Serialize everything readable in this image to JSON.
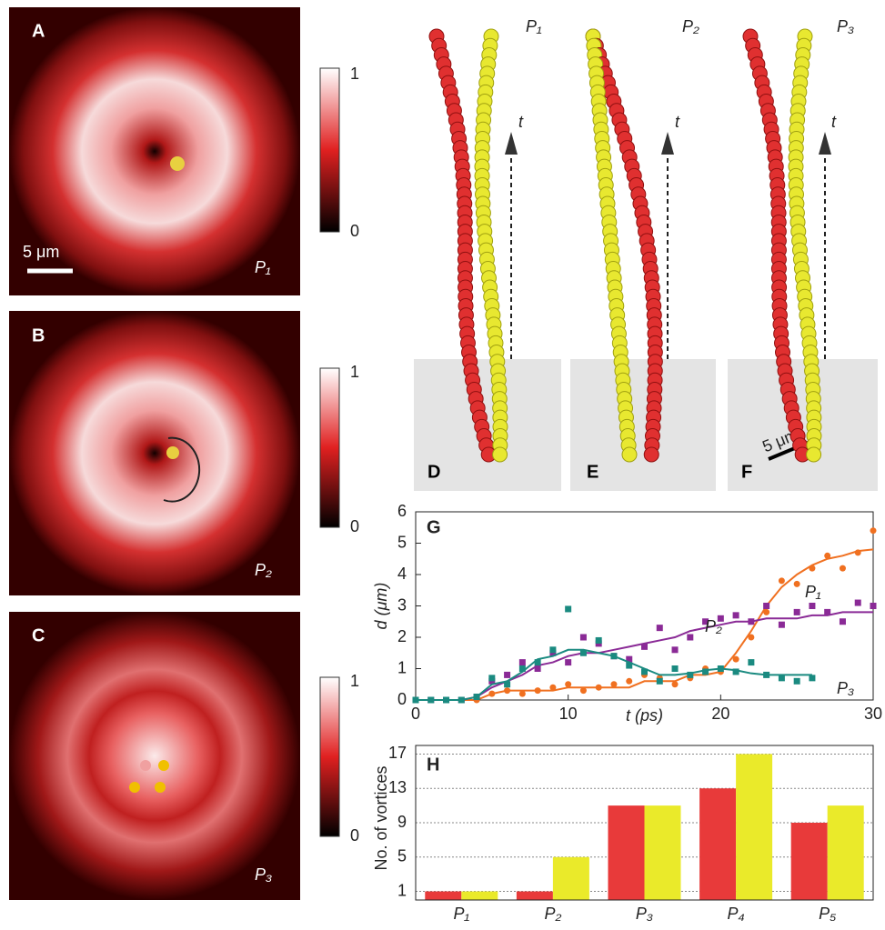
{
  "panels": {
    "letters": [
      "A",
      "B",
      "C",
      "D",
      "E",
      "F"
    ],
    "image_labels": [
      "P₁",
      "P₂",
      "P₃"
    ],
    "scale_label": "5 μm",
    "colorbar_ticks": [
      1,
      0
    ],
    "time_label": "t"
  },
  "chart_data": [
    {
      "type": "line",
      "panel": "G",
      "xlabel": "t (ps)",
      "ylabel": "d (μm)",
      "xlim": [
        0,
        30
      ],
      "ylim": [
        0,
        6
      ],
      "xticks": [
        0,
        10,
        20,
        30
      ],
      "yticks": [
        0,
        1,
        2,
        3,
        4,
        5,
        6
      ],
      "x": [
        0,
        1,
        2,
        3,
        4,
        5,
        6,
        7,
        8,
        9,
        10,
        11,
        12,
        13,
        14,
        15,
        16,
        17,
        18,
        19,
        20,
        21,
        22,
        23,
        24,
        25,
        26,
        27,
        28,
        29,
        30
      ],
      "series": [
        {
          "name": "P₁",
          "color": "#f07020",
          "marker": "circle",
          "values": [
            0,
            0,
            0,
            0,
            0,
            0.2,
            0.3,
            0.3,
            0.3,
            0.3,
            0.4,
            0.4,
            0.4,
            0.4,
            0.4,
            0.6,
            0.6,
            0.6,
            0.8,
            0.8,
            0.9,
            1.5,
            2.2,
            3.0,
            3.6,
            4.0,
            4.3,
            4.5,
            4.6,
            4.75,
            4.8
          ],
          "points": [
            0,
            0,
            0,
            0,
            0,
            0.2,
            0.3,
            0.2,
            0.3,
            0.4,
            0.5,
            0.3,
            0.4,
            0.5,
            0.6,
            0.8,
            0.7,
            0.5,
            0.7,
            1.0,
            0.9,
            1.3,
            2.0,
            2.8,
            3.8,
            3.7,
            4.2,
            4.6,
            4.2,
            4.7,
            5.4
          ]
        },
        {
          "name": "P₂",
          "color": "#8a2a96",
          "marker": "square",
          "values": [
            0,
            0,
            0,
            0,
            0.1,
            0.4,
            0.6,
            0.8,
            1.1,
            1.2,
            1.4,
            1.5,
            1.5,
            1.6,
            1.7,
            1.8,
            1.9,
            2.0,
            2.2,
            2.3,
            2.4,
            2.5,
            2.5,
            2.6,
            2.6,
            2.6,
            2.7,
            2.7,
            2.8,
            2.8,
            2.8
          ],
          "points": [
            0,
            0,
            0,
            0,
            0.1,
            0.6,
            0.8,
            1.2,
            1.0,
            1.5,
            1.2,
            2.0,
            1.8,
            1.4,
            1.3,
            1.7,
            2.3,
            1.6,
            2.0,
            2.5,
            2.6,
            2.7,
            2.5,
            3.0,
            2.4,
            2.8,
            3.0,
            2.8,
            2.5,
            3.1,
            3.0
          ]
        },
        {
          "name": "P₃",
          "color": "#1a8a80",
          "marker": "square",
          "values": [
            0,
            0,
            0,
            0,
            0.1,
            0.5,
            0.6,
            0.9,
            1.3,
            1.4,
            1.6,
            1.6,
            1.5,
            1.4,
            1.2,
            1.0,
            0.8,
            0.8,
            0.85,
            0.95,
            1.0,
            0.95,
            0.85,
            0.8,
            0.8,
            0.8,
            0.8,
            null,
            null,
            null,
            null
          ],
          "points": [
            0,
            0,
            0,
            0,
            0.1,
            0.7,
            0.5,
            1.0,
            1.2,
            1.6,
            2.9,
            1.5,
            1.9,
            1.4,
            1.1,
            0.9,
            0.6,
            1.0,
            0.8,
            0.9,
            1.0,
            0.9,
            1.2,
            0.8,
            0.7,
            0.6,
            0.7,
            null,
            null,
            null,
            null
          ]
        }
      ]
    },
    {
      "type": "bar",
      "panel": "H",
      "ylabel": "No. of vortices",
      "categories": [
        "P₁",
        "P₂",
        "P₃",
        "P₄",
        "P₅"
      ],
      "ylim": [
        0,
        18
      ],
      "yticks": [
        1,
        5,
        9,
        13,
        17
      ],
      "grid": true,
      "series": [
        {
          "color": "#e83a3a",
          "values": [
            1,
            1,
            11,
            13,
            9
          ]
        },
        {
          "color": "#eaea2a",
          "values": [
            1,
            5,
            11,
            17,
            11
          ]
        }
      ]
    }
  ]
}
